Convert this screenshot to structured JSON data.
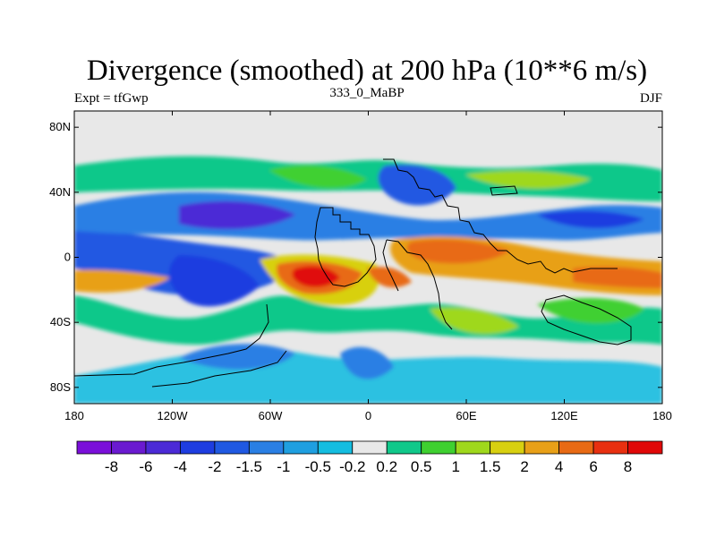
{
  "chart_data": {
    "type": "contour_map",
    "title": "Divergence (smoothed) at 200 hPa (10**6 m/s)",
    "left_label": "Expt = tfGwp",
    "center_label": "333_0_MaBP",
    "right_label": "DJF",
    "xlim": [
      -180,
      180
    ],
    "ylim": [
      -90,
      90
    ],
    "x_ticks": [
      {
        "value": -180,
        "label": "180"
      },
      {
        "value": -120,
        "label": "120W"
      },
      {
        "value": -60,
        "label": "60W"
      },
      {
        "value": 0,
        "label": "0"
      },
      {
        "value": 60,
        "label": "60E"
      },
      {
        "value": 120,
        "label": "120E"
      },
      {
        "value": 180,
        "label": "180"
      }
    ],
    "y_ticks": [
      {
        "value": 80,
        "label": "80N"
      },
      {
        "value": 40,
        "label": "40N"
      },
      {
        "value": 0,
        "label": "0"
      },
      {
        "value": -40,
        "label": "40S"
      },
      {
        "value": -80,
        "label": "80S"
      }
    ],
    "colorbar": {
      "levels": [
        "-8",
        "-6",
        "-4",
        "-2",
        "-1.5",
        "-1",
        "-0.5",
        "-0.2",
        "0.2",
        "0.5",
        "1",
        "1.5",
        "2",
        "4",
        "6",
        "8"
      ],
      "colors": [
        "#7a0fd9",
        "#6a1ad0",
        "#4b2ad6",
        "#1e3de0",
        "#2059e2",
        "#2a7fe4",
        "#1f9fe0",
        "#14bde0",
        "#e8e8e8",
        "#10c88a",
        "#3fd030",
        "#9fd81c",
        "#d8d010",
        "#e8a018",
        "#e86a14",
        "#e83010",
        "#e00808"
      ]
    },
    "fields": [
      {
        "name": "tropical-eastern-pacific-convergence",
        "lon": -120,
        "lat": 10,
        "rx": 45,
        "ry": 10,
        "value": -4
      },
      {
        "name": "tropical-central-pacific-convergence",
        "lon": -165,
        "lat": 5,
        "rx": 25,
        "ry": 8,
        "value": -2
      },
      {
        "name": "south-pacific-convergence",
        "lon": -105,
        "lat": -25,
        "rx": 25,
        "ry": 15,
        "value": -2.5
      },
      {
        "name": "south-atlantic-divergence-core",
        "lon": -35,
        "lat": -15,
        "rx": 15,
        "ry": 8,
        "value": 8
      },
      {
        "name": "south-atlantic-divergence",
        "lon": -30,
        "lat": -14,
        "rx": 32,
        "ry": 14,
        "value": 2
      },
      {
        "name": "north-africa-divergence",
        "lon": 50,
        "lat": 5,
        "rx": 35,
        "ry": 8,
        "value": 4
      },
      {
        "name": "indian-ocean-divergence",
        "lon": 140,
        "lat": -12,
        "rx": 60,
        "ry": 10,
        "value": 2
      },
      {
        "name": "eastern-pacific-south-divergence",
        "lon": -170,
        "lat": -15,
        "rx": 15,
        "ry": 8,
        "value": 2
      },
      {
        "name": "north-atlantic-convergence",
        "lon": 15,
        "lat": 25,
        "rx": 30,
        "ry": 15,
        "value": -1.5
      },
      {
        "name": "mid-latitude-north-band",
        "lon": 60,
        "lat": 35,
        "rx": 90,
        "ry": 8,
        "value": 1
      },
      {
        "name": "southern-ocean-convergence",
        "lon": -75,
        "lat": -70,
        "rx": 25,
        "ry": 10,
        "value": -1
      }
    ]
  }
}
